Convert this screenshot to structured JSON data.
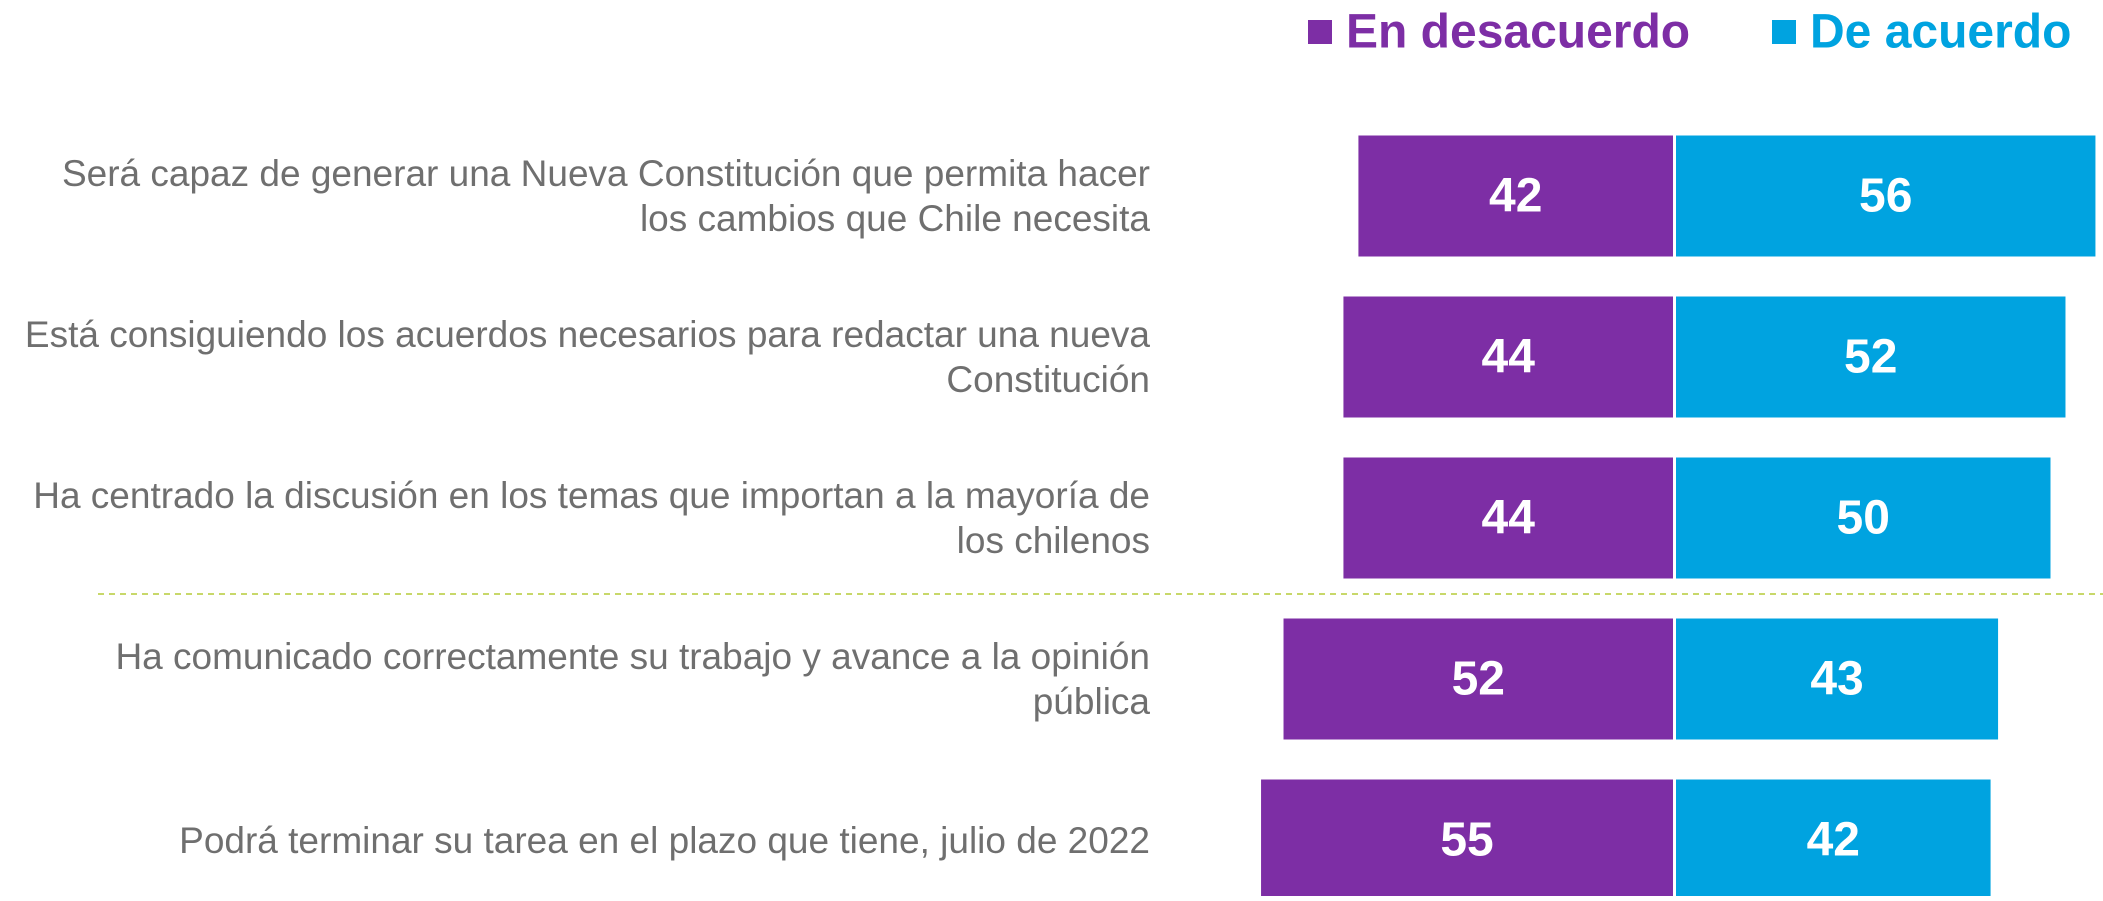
{
  "chart_data": {
    "type": "bar",
    "categories": [
      "Será capaz de generar una Nueva Constitución que permita hacer los cambios que Chile necesita",
      "Está consiguiendo los acuerdos necesarios para redactar una nueva Constitución",
      "Ha centrado la discusión en los temas que importan a la mayoría de los chilenos",
      "Ha comunicado correctamente su trabajo y avance a la opinión pública",
      "Podrá terminar su tarea en el plazo que tiene, julio de 2022"
    ],
    "series": [
      {
        "name": "En desacuerdo",
        "color": "#7d2ea5",
        "values": [
          42,
          44,
          44,
          52,
          55
        ]
      },
      {
        "name": "De acuerdo",
        "color": "#00a3e0",
        "values": [
          56,
          52,
          50,
          43,
          42
        ]
      }
    ]
  }
}
